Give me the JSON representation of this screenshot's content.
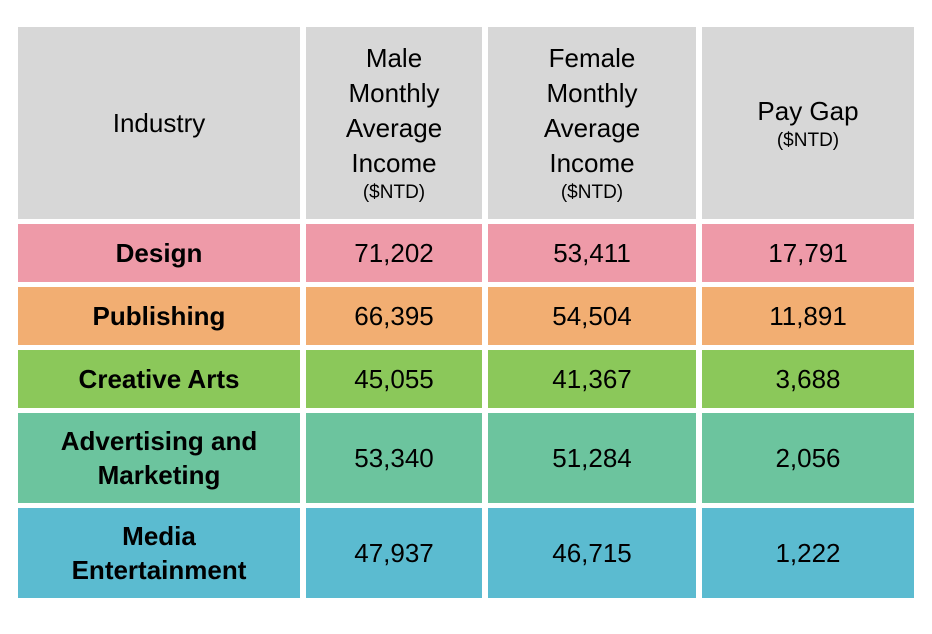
{
  "chart_data": {
    "type": "table",
    "columns": [
      {
        "label": "Industry",
        "unit": ""
      },
      {
        "label": "Male Monthly Average Income",
        "unit": "($NTD)"
      },
      {
        "label": "Female Monthly Average Income",
        "unit": "($NTD)"
      },
      {
        "label": "Pay Gap",
        "unit": "($NTD)"
      }
    ],
    "header_color": "#d7d7d7",
    "rows": [
      {
        "industry": "Design",
        "male": "71,202",
        "female": "53,411",
        "gap": "17,791",
        "color": "#ee9aa8"
      },
      {
        "industry": "Publishing",
        "male": "66,395",
        "female": "54,504",
        "gap": "11,891",
        "color": "#f2ae72"
      },
      {
        "industry": "Creative Arts",
        "male": "45,055",
        "female": "41,367",
        "gap": "3,688",
        "color": "#8bc85a"
      },
      {
        "industry": "Advertising and Marketing",
        "male": "53,340",
        "female": "51,284",
        "gap": "2,056",
        "color": "#6cc49e"
      },
      {
        "industry": "Media Entertainment",
        "male": "47,937",
        "female": "46,715",
        "gap": "1,222",
        "color": "#5bbbd0"
      }
    ]
  }
}
